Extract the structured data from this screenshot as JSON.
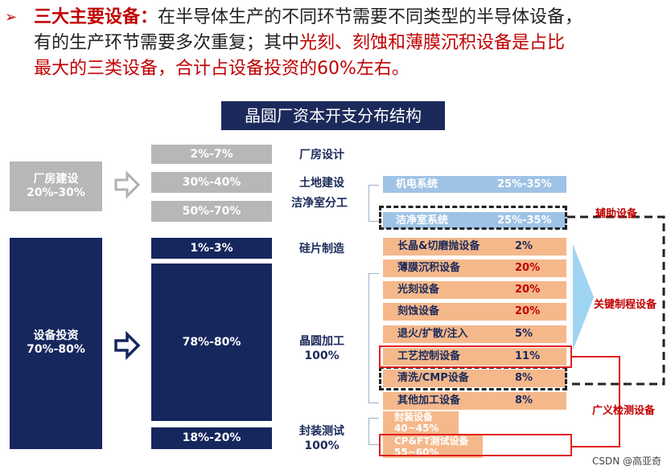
{
  "intro": {
    "bullet": "➢",
    "kw": "三大主要设备：",
    "t1": "在半导体生产的不同环节需要不同类型的半导体设备，",
    "t2": "有的生产环节需要多次重复；其中",
    "hl1": "光刻、刻蚀和薄膜沉积设备是占比",
    "hl2": "最大的三类设备，合计占设备投资的60%左右。"
  },
  "title": "晶圆厂资本开支分布结构",
  "left": {
    "factory": {
      "name": "厂房建设",
      "range": "20%-30%"
    },
    "equipment": {
      "name": "设备投资",
      "range": "70%-80%"
    }
  },
  "mid": {
    "plant_design": "2%-7%",
    "land": "30%-40%",
    "clean_room": "50%-70%",
    "silicon": "1%-3%",
    "wafer": "78%-80%",
    "packaging": "18%-20%"
  },
  "labels": {
    "plant_design": "厂房设计",
    "land": "土地建设",
    "clean_room": "洁净室分工",
    "silicon": "硅片制造",
    "wafer": "晶圆加工",
    "wafer_pct": "100%",
    "packaging": "封装测试",
    "packaging_pct": "100%"
  },
  "aux_items": [
    {
      "name": "机电系统",
      "pct": "25%-35%"
    },
    {
      "name": "洁净室系统",
      "pct": "25%-35%"
    }
  ],
  "process_items": [
    {
      "name": "长晶&切磨抛设备",
      "pct": "2%",
      "red": false
    },
    {
      "name": "薄膜沉积设备",
      "pct": "20%",
      "red": true
    },
    {
      "name": "光刻设备",
      "pct": "20%",
      "red": true
    },
    {
      "name": "刻蚀设备",
      "pct": "20%",
      "red": true
    },
    {
      "name": "退火/扩散/注入",
      "pct": "5%",
      "red": false
    },
    {
      "name": "工艺控制设备",
      "pct": "11%",
      "red": false
    },
    {
      "name": "清洗/CMP设备",
      "pct": "8%",
      "red": false
    },
    {
      "name": "其他加工设备",
      "pct": "8%",
      "red": false
    }
  ],
  "packaging_items": [
    {
      "name": "封装设备",
      "pct": "40~45%"
    },
    {
      "name": "CP&FT测试设备",
      "pct": "55~60%"
    }
  ],
  "right_labels": {
    "aux": "辅助设备",
    "key": "关键制程设备",
    "inspect": "广义检测设备"
  },
  "watermark": "CSDN @高亚奇",
  "colors": {
    "navy": "#16275e",
    "gray": "#b7b7b7",
    "light_blue": "#9fc3e6",
    "orange": "#f5b88b",
    "red": "#c00000"
  }
}
